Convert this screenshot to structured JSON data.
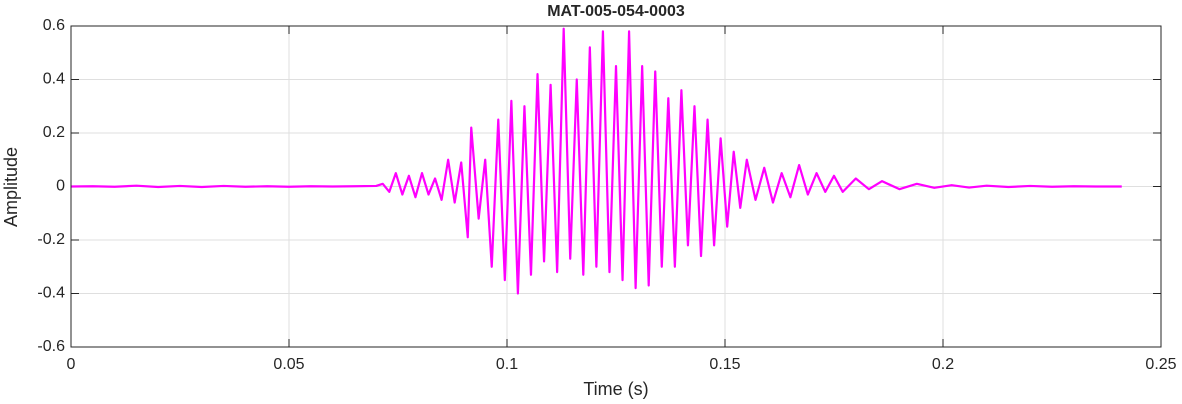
{
  "chart_data": {
    "type": "line",
    "title": "MAT-005-054-0003",
    "xlabel": "Time (s)",
    "ylabel": "Amplitude",
    "color": "#ff00ff",
    "grid": true,
    "xlim": [
      0,
      0.25
    ],
    "ylim": [
      -0.6,
      0.6
    ],
    "xticks": [
      0,
      0.05,
      0.1,
      0.15,
      0.2,
      0.25
    ],
    "yticks": [
      -0.6,
      -0.4,
      -0.2,
      0,
      0.2,
      0.4,
      0.6
    ],
    "x": [
      0,
      0.005,
      0.01,
      0.015,
      0.02,
      0.025,
      0.03,
      0.035,
      0.04,
      0.045,
      0.05,
      0.055,
      0.06,
      0.065,
      0.07,
      0.0715,
      0.073,
      0.0745,
      0.076,
      0.0775,
      0.079,
      0.0805,
      0.082,
      0.0835,
      0.085,
      0.0865,
      0.088,
      0.0895,
      0.091,
      0.0918,
      0.0935,
      0.095,
      0.0965,
      0.098,
      0.0995,
      0.101,
      0.1025,
      0.104,
      0.1055,
      0.107,
      0.1085,
      0.11,
      0.1115,
      0.113,
      0.1145,
      0.116,
      0.1175,
      0.119,
      0.1205,
      0.122,
      0.1235,
      0.125,
      0.1265,
      0.128,
      0.1295,
      0.131,
      0.1325,
      0.134,
      0.1355,
      0.137,
      0.1385,
      0.14,
      0.1415,
      0.143,
      0.1445,
      0.146,
      0.1475,
      0.149,
      0.1505,
      0.152,
      0.1535,
      0.155,
      0.157,
      0.159,
      0.161,
      0.163,
      0.165,
      0.167,
      0.169,
      0.171,
      0.173,
      0.175,
      0.177,
      0.18,
      0.183,
      0.186,
      0.19,
      0.194,
      0.198,
      0.202,
      0.206,
      0.21,
      0.215,
      0.22,
      0.225,
      0.23,
      0.235,
      0.241
    ],
    "values": [
      0,
      0.001,
      -0.001,
      0.003,
      -0.002,
      0.002,
      -0.002,
      0.002,
      -0.001,
      0.001,
      -0.001,
      0.001,
      0,
      0.001,
      0.002,
      0.01,
      -0.02,
      0.05,
      -0.03,
      0.04,
      -0.04,
      0.05,
      -0.03,
      0.03,
      -0.05,
      0.1,
      -0.06,
      0.09,
      -0.19,
      0.22,
      -0.12,
      0.1,
      -0.3,
      0.25,
      -0.35,
      0.32,
      -0.4,
      0.3,
      -0.33,
      0.42,
      -0.28,
      0.38,
      -0.32,
      0.59,
      -0.27,
      0.4,
      -0.33,
      0.52,
      -0.3,
      0.58,
      -0.32,
      0.45,
      -0.35,
      0.58,
      -0.38,
      0.45,
      -0.37,
      0.43,
      -0.3,
      0.33,
      -0.3,
      0.36,
      -0.22,
      0.3,
      -0.26,
      0.25,
      -0.22,
      0.18,
      -0.15,
      0.13,
      -0.08,
      0.1,
      -0.05,
      0.07,
      -0.06,
      0.05,
      -0.04,
      0.08,
      -0.03,
      0.05,
      -0.02,
      0.04,
      -0.02,
      0.03,
      -0.01,
      0.02,
      -0.01,
      0.01,
      -0.005,
      0.005,
      -0.004,
      0.003,
      -0.002,
      0.002,
      -0.001,
      0.001,
      0,
      0
    ]
  }
}
